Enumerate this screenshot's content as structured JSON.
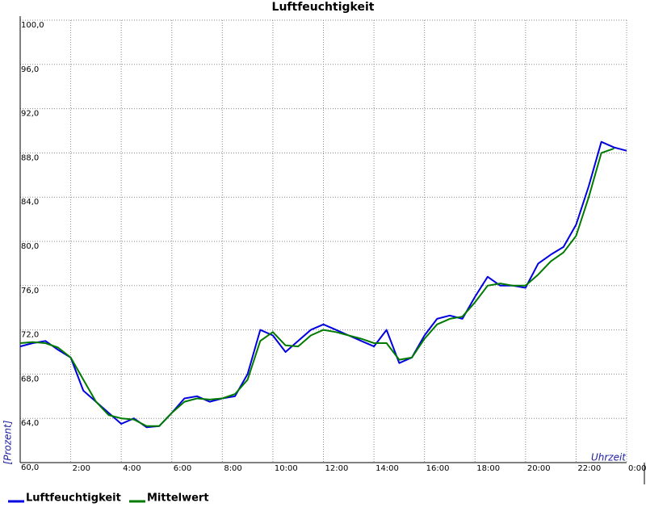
{
  "chart_data": {
    "type": "line",
    "title": "Luftfeuchtigkeit",
    "y_label": "[Prozent]",
    "x_label": "Uhrzeit",
    "x": [
      0,
      0.5,
      1,
      1.5,
      2,
      2.5,
      3,
      3.5,
      4,
      4.5,
      5,
      5.5,
      6,
      6.5,
      7,
      7.5,
      8,
      8.5,
      9,
      9.5,
      10,
      10.5,
      11,
      11.5,
      12,
      12.5,
      13,
      13.5,
      14,
      14.5,
      15,
      15.5,
      16,
      16.5,
      17,
      17.5,
      18,
      18.5,
      19,
      19.5,
      20,
      20.5,
      21,
      21.5,
      22,
      22.5,
      23,
      23.5,
      24
    ],
    "series": [
      {
        "name": "Luftfeuchtigkeit",
        "color": "#0000e0",
        "values": [
          70.5,
          70.8,
          71,
          70.2,
          69.5,
          66.5,
          65.5,
          64.5,
          63.5,
          64,
          63.2,
          63.3,
          64.5,
          65.8,
          66,
          65.5,
          65.8,
          66,
          68,
          72,
          71.5,
          70,
          71,
          72,
          72.5,
          72,
          71.5,
          71,
          70.5,
          72,
          69,
          69.5,
          71.5,
          73,
          73.3,
          73,
          75,
          76.8,
          76,
          76,
          75.8,
          78,
          78.8,
          79.5,
          81.5,
          85,
          89,
          88.5,
          88.2
        ]
      },
      {
        "name": "Mittelwert",
        "color": "#007a00",
        "values": [
          70.8,
          70.9,
          70.8,
          70.4,
          69.5,
          67.5,
          65.5,
          64.3,
          64,
          63.9,
          63.3,
          63.3,
          64.5,
          65.5,
          65.8,
          65.7,
          65.8,
          66.2,
          67.5,
          71,
          71.8,
          70.6,
          70.5,
          71.5,
          72,
          71.8,
          71.5,
          71.2,
          70.8,
          70.8,
          69.3,
          69.5,
          71.2,
          72.5,
          73,
          73.2,
          74.5,
          76,
          76.2,
          76,
          76,
          77,
          78.2,
          79,
          80.5,
          84,
          88,
          88.4,
          null
        ]
      }
    ],
    "xlim": [
      0,
      24
    ],
    "xticks": [
      {
        "value": 2,
        "label": "2:00"
      },
      {
        "value": 4,
        "label": "4:00"
      },
      {
        "value": 6,
        "label": "6:00"
      },
      {
        "value": 8,
        "label": "8:00"
      },
      {
        "value": 10,
        "label": "10:00"
      },
      {
        "value": 12,
        "label": "12:00"
      },
      {
        "value": 14,
        "label": "14:00"
      },
      {
        "value": 16,
        "label": "16:00"
      },
      {
        "value": 18,
        "label": "18:00"
      },
      {
        "value": 20,
        "label": "20:00"
      },
      {
        "value": 22,
        "label": "22:00"
      },
      {
        "value": 24,
        "label": "0:00"
      }
    ],
    "ylim": [
      60,
      100
    ],
    "yticks": [
      {
        "value": 60,
        "label": "60,0"
      },
      {
        "value": 64,
        "label": "64,0"
      },
      {
        "value": 68,
        "label": "68,0"
      },
      {
        "value": 72,
        "label": "72,0"
      },
      {
        "value": 76,
        "label": "76,0"
      },
      {
        "value": 80,
        "label": "80,0"
      },
      {
        "value": 84,
        "label": "84,0"
      },
      {
        "value": 88,
        "label": "88,0"
      },
      {
        "value": 92,
        "label": "92,0"
      },
      {
        "value": 96,
        "label": "96,0"
      },
      {
        "value": 100,
        "label": "100,0"
      }
    ],
    "grid": true
  }
}
